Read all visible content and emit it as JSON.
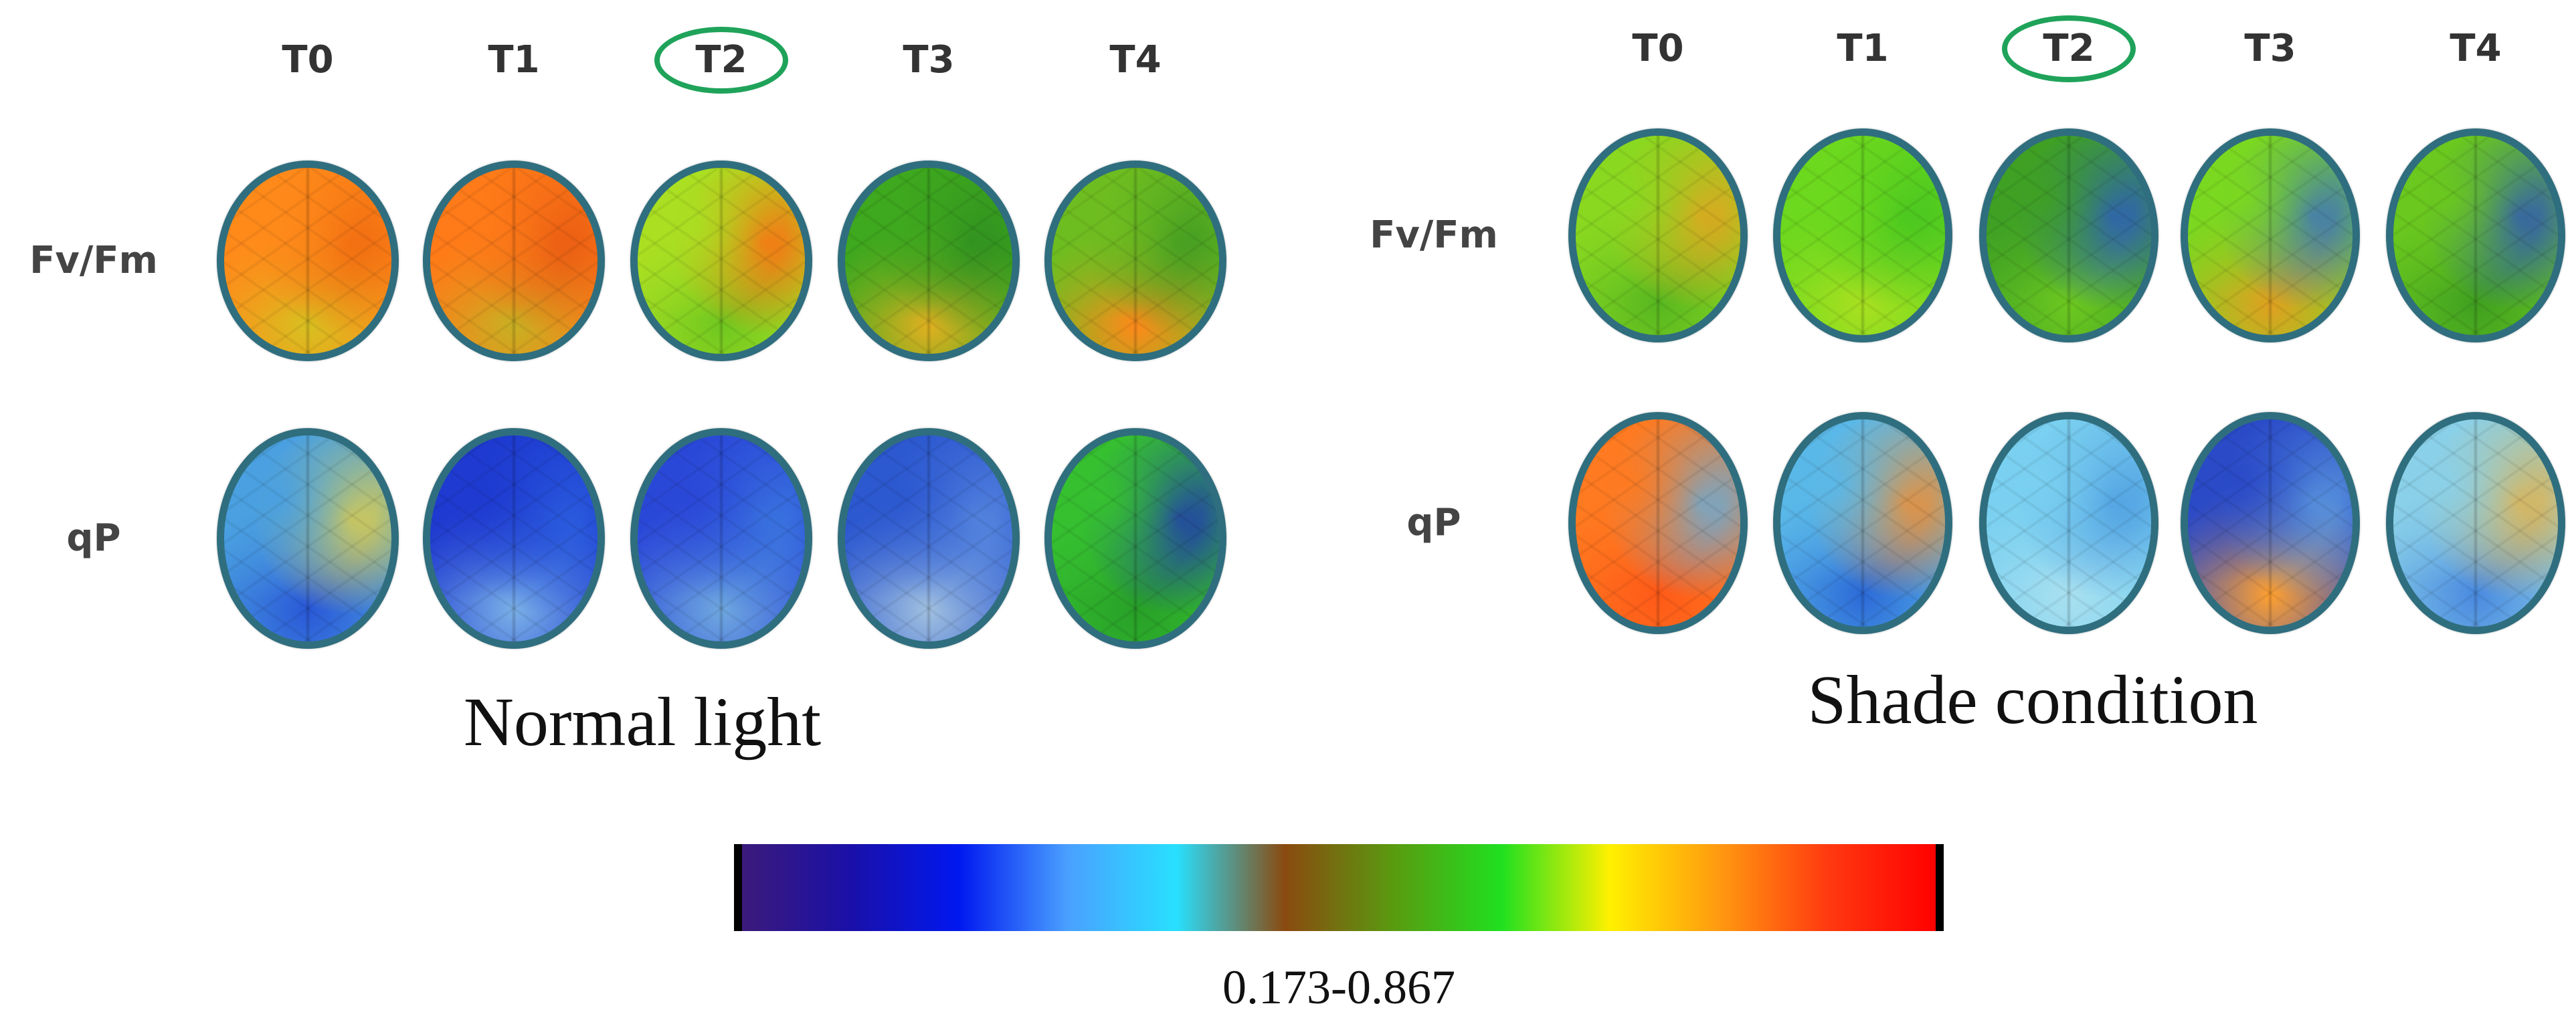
{
  "panels": [
    {
      "title": "Normal light",
      "columns": [
        "T0",
        "T1",
        "T2",
        "T3",
        "T4"
      ],
      "highlighted_column": "T2",
      "rows": [
        {
          "label": "Fv/Fm",
          "leaves": [
            {
              "colors": [
                "#ff8a1a",
                "#f06a10",
                "#d8c020"
              ]
            },
            {
              "colors": [
                "#ff7a18",
                "#e85a12",
                "#c8b022"
              ]
            },
            {
              "colors": [
                "#aadf22",
                "#ff6a12",
                "#70c820"
              ]
            },
            {
              "colors": [
                "#3ea81e",
                "#2f8f20",
                "#e0b020"
              ]
            },
            {
              "colors": [
                "#6ebd20",
                "#3f9a22",
                "#ff8a1a"
              ]
            }
          ]
        },
        {
          "label": "qP",
          "leaves": [
            {
              "colors": [
                "#4aa0e0",
                "#e8d040",
                "#2a58d8"
              ]
            },
            {
              "colors": [
                "#1e3ad0",
                "#2b60e0",
                "#7ab0e8"
              ]
            },
            {
              "colors": [
                "#2a48d8",
                "#3c7ae0",
                "#6fa8e0"
              ]
            },
            {
              "colors": [
                "#2c58d0",
                "#5a8ae0",
                "#a0c0e0"
              ]
            },
            {
              "colors": [
                "#36c030",
                "#1f30b8",
                "#28a028"
              ]
            }
          ]
        }
      ]
    },
    {
      "title": "Shade condition",
      "columns": [
        "T0",
        "T1",
        "T2",
        "T3",
        "T4"
      ],
      "highlighted_column": "T2",
      "rows": [
        {
          "label": "Fv/Fm",
          "leaves": [
            {
              "colors": [
                "#8ad820",
                "#e8a020",
                "#58b820"
              ]
            },
            {
              "colors": [
                "#6cd81e",
                "#44c420",
                "#a8e020"
              ]
            },
            {
              "colors": [
                "#3fa024",
                "#2c58c8",
                "#6cc820"
              ]
            },
            {
              "colors": [
                "#7ad820",
                "#3a6ac8",
                "#e0a020"
              ]
            },
            {
              "colors": [
                "#6ac81e",
                "#2c50c0",
                "#40a020"
              ]
            }
          ]
        },
        {
          "label": "qP",
          "leaves": [
            {
              "colors": [
                "#ff7a20",
                "#5ab0e8",
                "#ff5a18"
              ]
            },
            {
              "colors": [
                "#5ab8e8",
                "#ff8a20",
                "#2c6ad8"
              ]
            },
            {
              "colors": [
                "#7ad0f0",
                "#4a9ae0",
                "#a8e0f0"
              ]
            },
            {
              "colors": [
                "#2a4ac8",
                "#60a0e0",
                "#ffa030"
              ]
            },
            {
              "colors": [
                "#8ad0e8",
                "#e8b040",
                "#4a8ae0"
              ]
            }
          ]
        }
      ]
    }
  ],
  "colorbar": {
    "range_label": "0.173-0.867",
    "min": 0.173,
    "max": 0.867,
    "stops": [
      "#3b1a7a",
      "#1a10a8",
      "#0018f0",
      "#4aa0ff",
      "#28e0ff",
      "#8a4a10",
      "#5a9a10",
      "#20e020",
      "#fff000",
      "#ff9a10",
      "#ff3a10",
      "#ff0000"
    ]
  }
}
